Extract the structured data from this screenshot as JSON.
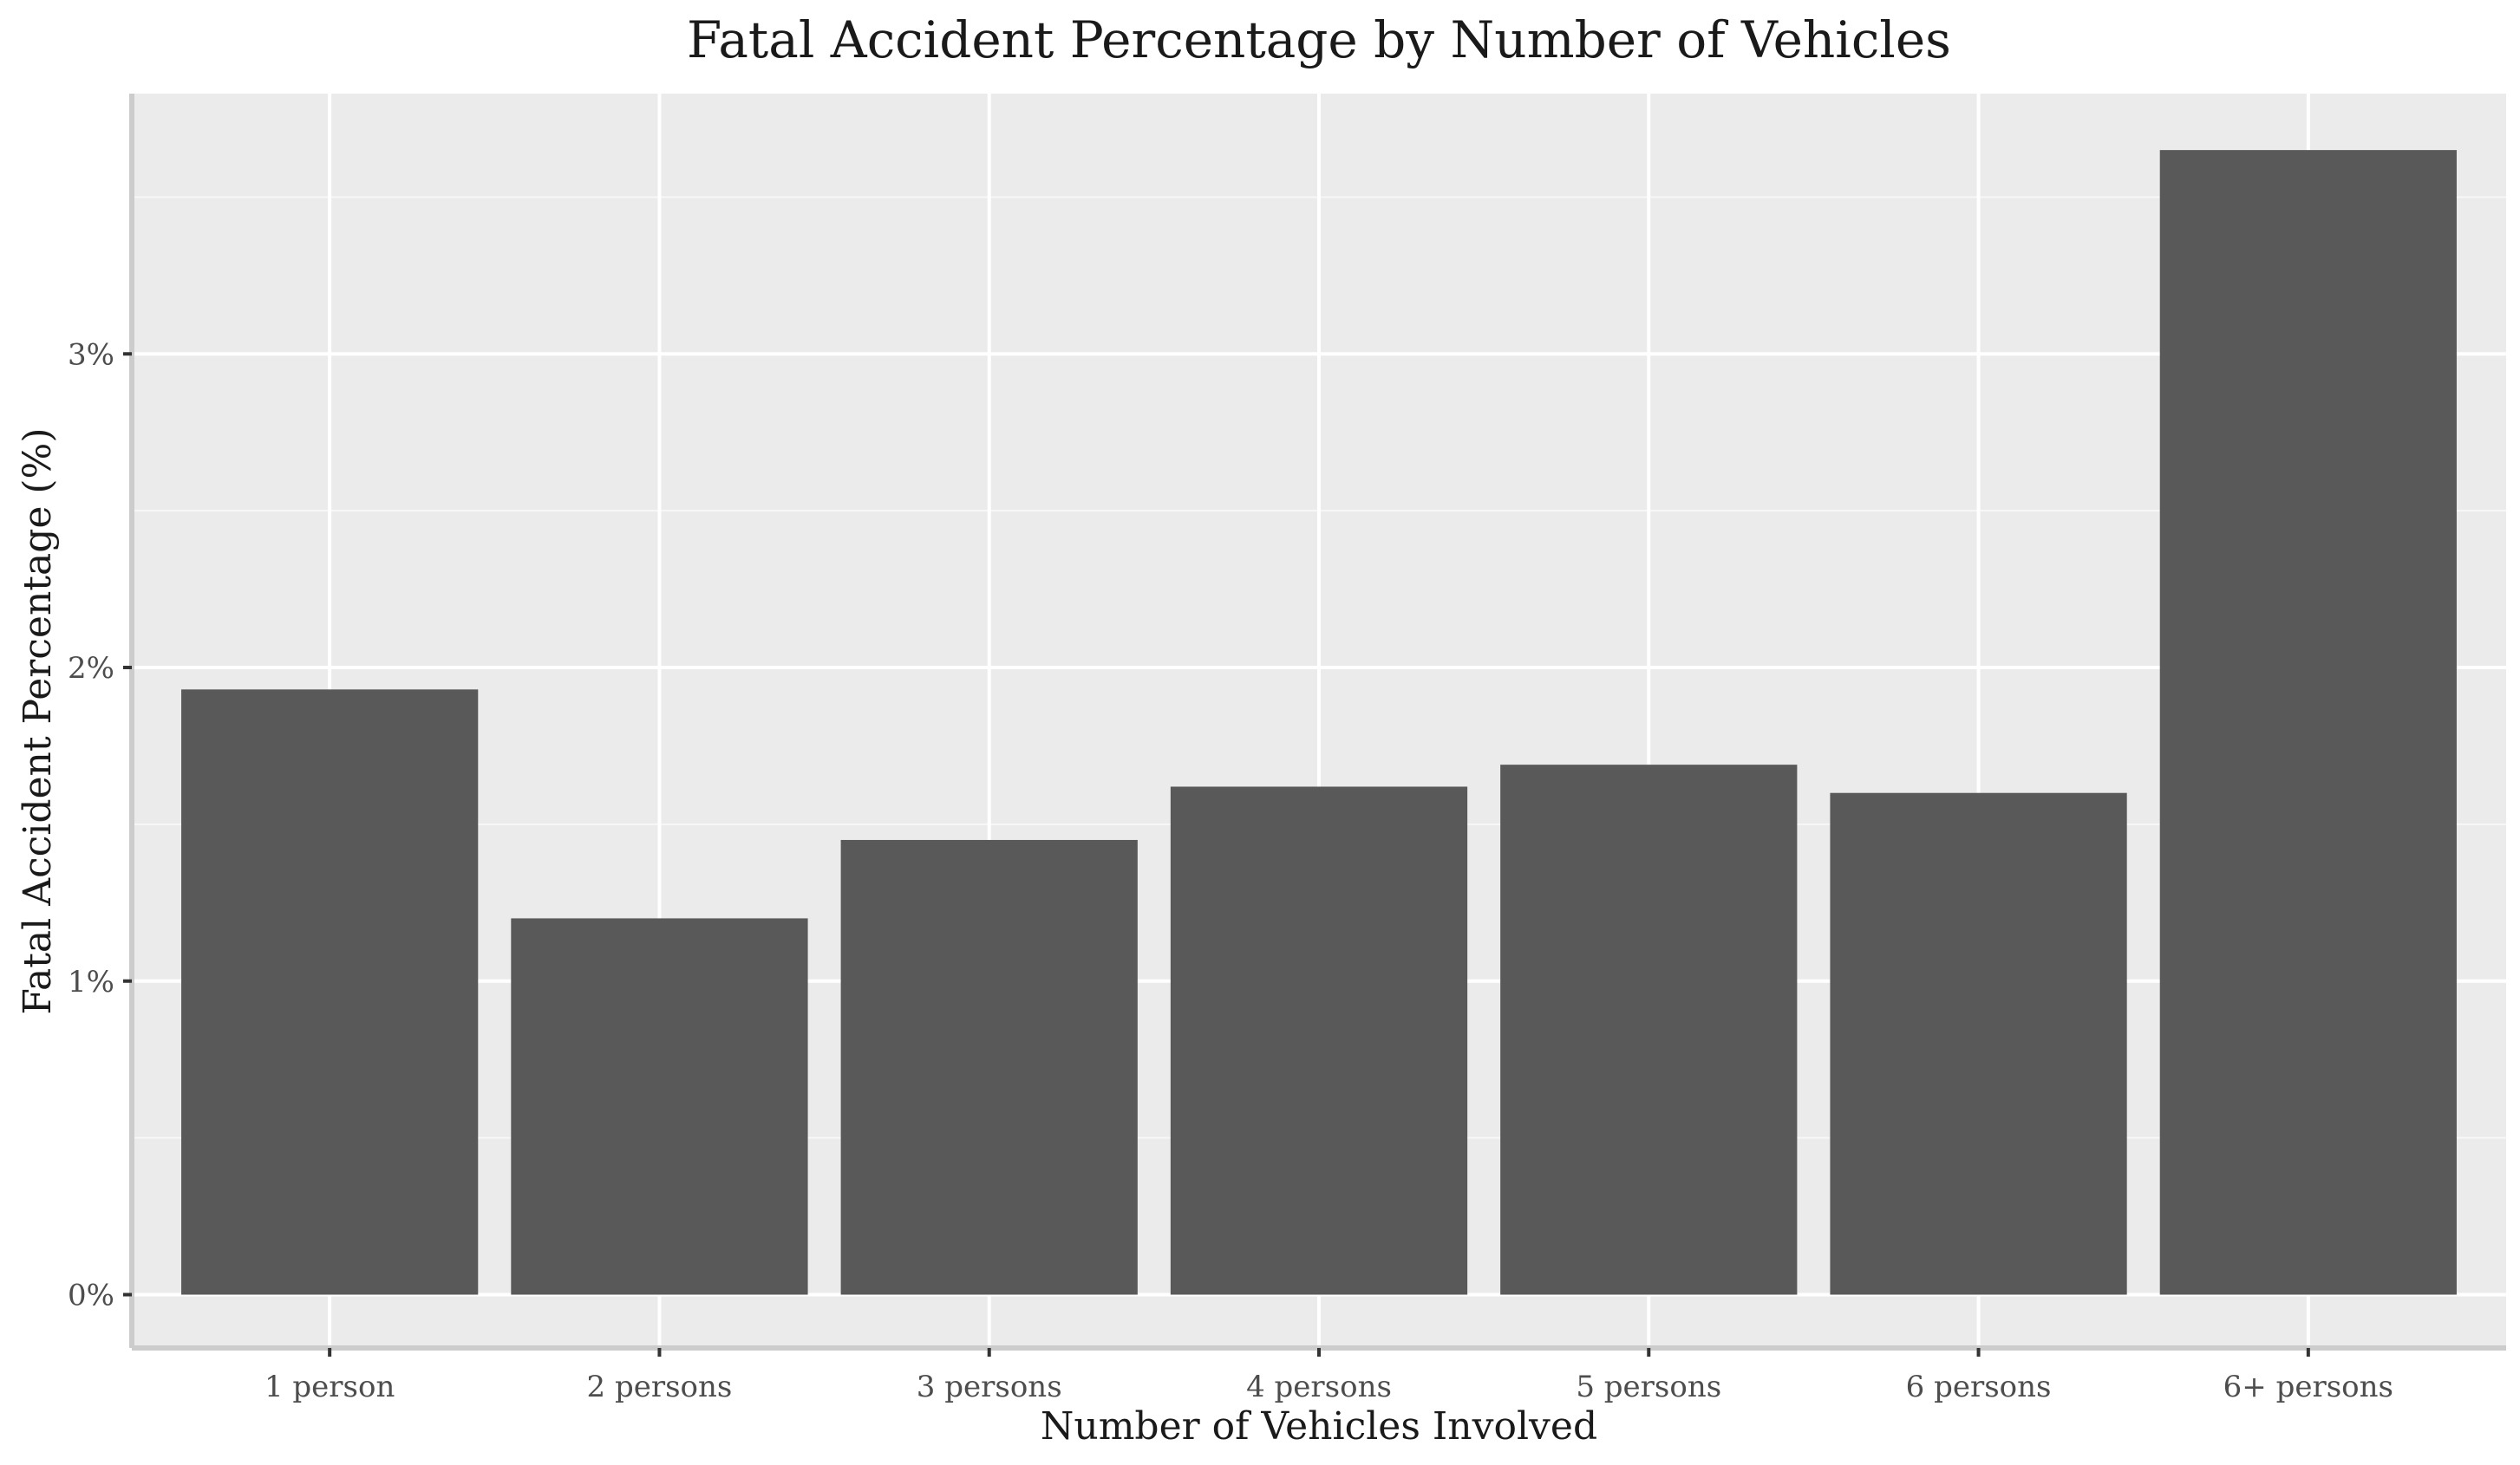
{
  "chart_data": {
    "type": "bar",
    "title": "Fatal Accident Percentage by Number of Vehicles",
    "xlabel": "Number of Vehicles Involved",
    "ylabel": "Fatal Accident Percentage (%)",
    "categories": [
      "1 person",
      "2 persons",
      "3 persons",
      "4 persons",
      "5 persons",
      "6 persons",
      "6+ persons"
    ],
    "values": [
      1.93,
      1.2,
      1.45,
      1.62,
      1.69,
      1.6,
      3.65
    ],
    "ylim": [
      -0.17,
      3.83
    ],
    "yticks": [
      0,
      1,
      2,
      3
    ],
    "ytick_labels": [
      "0%",
      "1%",
      "2%",
      "3%"
    ],
    "grid": true,
    "legend": "none",
    "colors": {
      "bar": "#595959",
      "panel": "#ebebeb",
      "grid_major": "#ffffff",
      "grid_minor": "#f7f7f7",
      "axis_line": "#cccccc"
    }
  }
}
